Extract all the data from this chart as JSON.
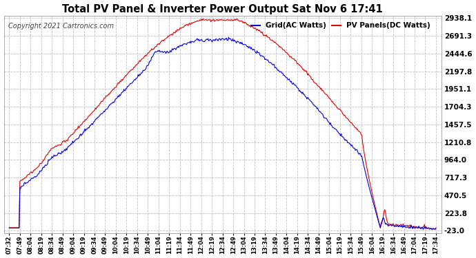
{
  "title": "Total PV Panel & Inverter Power Output Sat Nov 6 17:41",
  "copyright": "Copyright 2021 Cartronics.com",
  "legend_blue": "Grid(AC Watts)",
  "legend_red": "PV Panels(DC Watts)",
  "yticks": [
    -23.0,
    223.8,
    470.5,
    717.3,
    964.0,
    1210.8,
    1457.5,
    1704.3,
    1951.1,
    2197.8,
    2444.6,
    2691.3,
    2938.1
  ],
  "ymin": -23.0,
  "ymax": 2938.1,
  "background_color": "#ffffff",
  "plot_bg_color": "#ffffff",
  "grid_color": "#c0c0c0",
  "title_color": "#000000",
  "blue_color": "#0000dd",
  "red_color": "#dd0000",
  "x_label_color": "#000000",
  "xtick_labels": [
    "07:32",
    "07:49",
    "08:04",
    "08:19",
    "08:34",
    "08:49",
    "09:04",
    "09:19",
    "09:34",
    "09:49",
    "10:04",
    "10:19",
    "10:34",
    "10:49",
    "11:04",
    "11:19",
    "11:34",
    "11:49",
    "12:04",
    "12:19",
    "12:34",
    "12:49",
    "13:04",
    "13:19",
    "13:34",
    "13:49",
    "14:04",
    "14:19",
    "14:34",
    "14:49",
    "15:04",
    "15:19",
    "15:34",
    "15:49",
    "16:04",
    "16:19",
    "16:34",
    "16:49",
    "17:04",
    "17:19",
    "17:34"
  ],
  "n_fine": 600,
  "red_peak": 2900.0,
  "blue_peak": 2650.0,
  "red_noise_scale": 18.0,
  "blue_noise_scale": 22.0,
  "figwidth": 6.9,
  "figheight": 3.75,
  "dpi": 100
}
